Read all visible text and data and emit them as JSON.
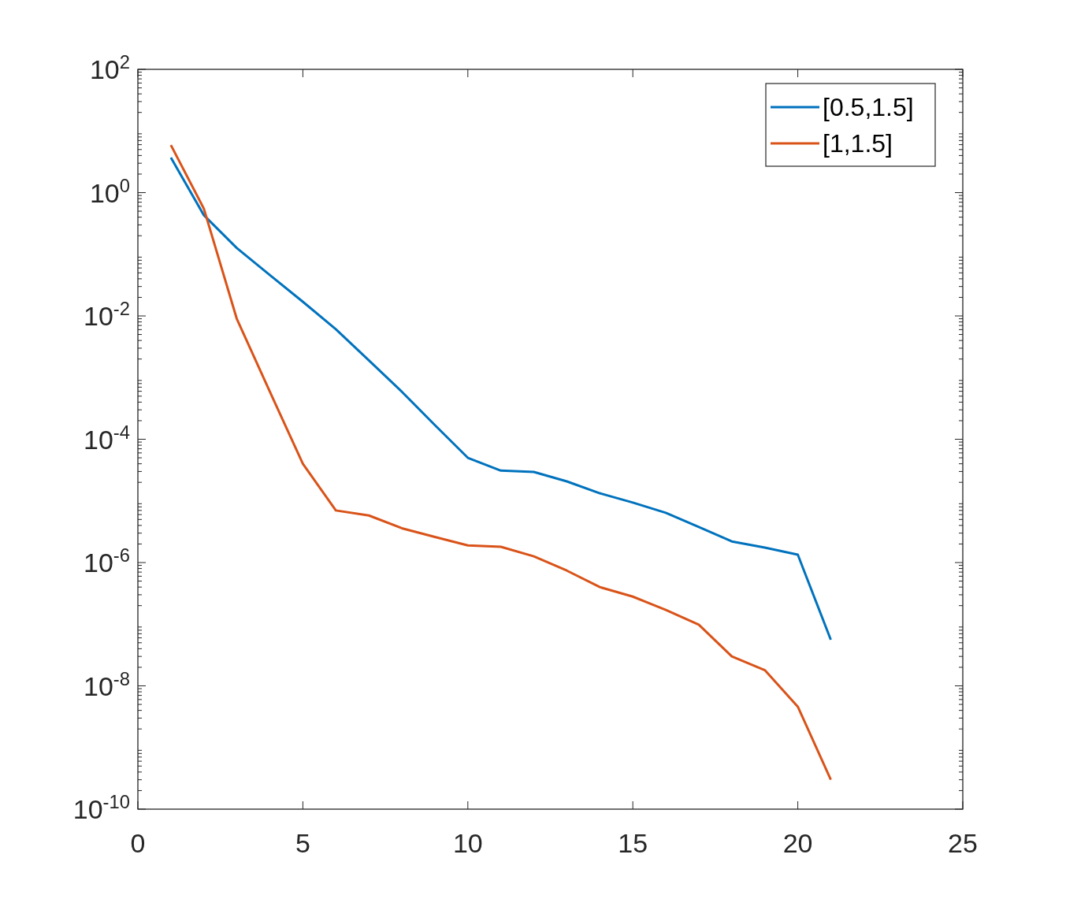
{
  "chart_data": {
    "type": "line",
    "log": "y",
    "grid": false,
    "legend": "top right",
    "line_style": "solid",
    "marker": "none",
    "x": [
      1,
      2,
      3,
      4,
      5,
      6,
      7,
      8,
      9,
      10,
      11,
      12,
      13,
      14,
      15,
      16,
      17,
      18,
      19,
      20,
      21
    ],
    "xlim": [
      0,
      25
    ],
    "xticks": [
      0,
      5,
      10,
      15,
      20,
      25
    ],
    "ylim": [
      1e-10,
      100
    ],
    "yticks": [
      {
        "value": 1e-10,
        "label": "10$^{-10}$"
      },
      {
        "value": 1e-08,
        "label": "10$^{-8}$"
      },
      {
        "value": 1e-06,
        "label": "10$^{-6}$"
      },
      {
        "value": 0.0001,
        "label": "10$^{-4}$"
      },
      {
        "value": 0.01,
        "label": "10$^{-2}$"
      },
      {
        "value": 1,
        "label": "10$^{0}$"
      },
      {
        "value": 100,
        "label": "10$^{2}$"
      }
    ],
    "series": [
      {
        "name": "[0.5,1.5]",
        "color": "#0072bd",
        "values": [
          3.7,
          0.43,
          0.126,
          0.046,
          0.017,
          0.0061,
          0.0019,
          0.00059,
          0.00017,
          5e-05,
          3.1e-05,
          2.95e-05,
          2.07e-05,
          1.33e-05,
          9.4e-06,
          6.4e-06,
          3.76e-06,
          2.2e-06,
          1.75e-06,
          1.34e-06,
          5.6e-08
        ]
      },
      {
        "name": "[1,1.5]",
        "color": "#d95319",
        "values": [
          5.9,
          0.55,
          0.0089,
          0.00059,
          4e-05,
          7e-06,
          5.8e-06,
          3.6e-06,
          2.6e-06,
          1.9e-06,
          1.8e-06,
          1.26e-06,
          7.4e-07,
          4e-07,
          2.8e-07,
          1.7e-07,
          9.8e-08,
          3e-08,
          1.8e-08,
          4.6e-09,
          3e-10
        ]
      }
    ]
  }
}
